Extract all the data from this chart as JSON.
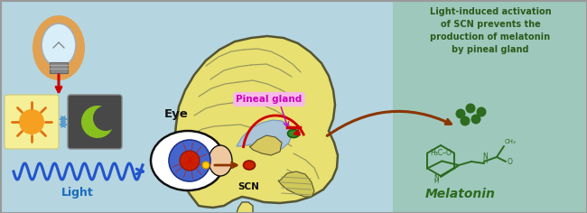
{
  "bg_color": "#b5d5e0",
  "right_panel_color": "#9ec8bc",
  "title_text": "Light-induced activation\nof SCN prevents the\nproduction of melatonin\nby pineal gland",
  "title_color": "#2d5a1b",
  "melatonin_label": "Melatonin",
  "melatonin_color": "#2d6b1e",
  "pineal_label": "Pineal gland",
  "pineal_bg": "#f5b8e8",
  "scn_label": "SCN",
  "eye_label": "Eye",
  "light_label": "Light",
  "light_color": "#1a6bbf",
  "arrow_brown": "#8b3500",
  "arrow_red": "#cc0000",
  "sun_color": "#f5a020",
  "brain_fill": "#e8e070",
  "brain_edge": "#555533",
  "fold_color": "#999960"
}
